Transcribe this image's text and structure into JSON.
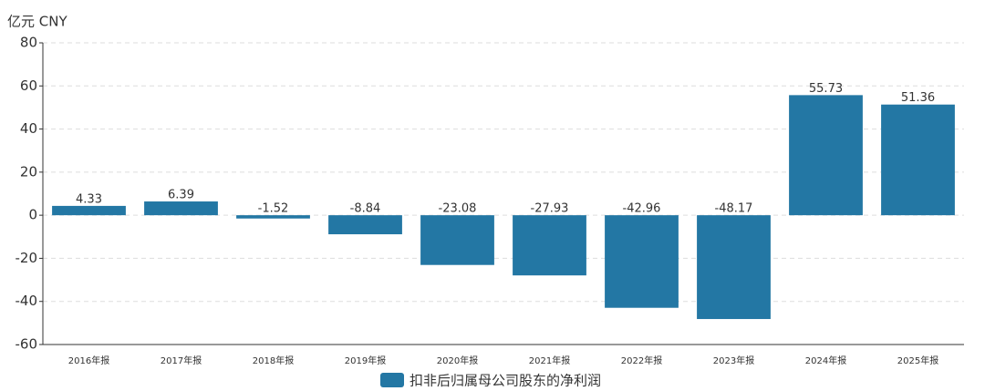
{
  "chart_data": {
    "type": "bar",
    "ylabel": "亿元  CNY",
    "categories": [
      "2016年报",
      "2017年报",
      "2018年报",
      "2019年报",
      "2020年报",
      "2021年报",
      "2022年报",
      "2023年报",
      "2024年报",
      "2025年报"
    ],
    "series": [
      {
        "name": "扣非后归属母公司股东的净利润",
        "color": "#2377a4",
        "values": [
          4.33,
          6.39,
          -1.52,
          -8.84,
          -23.08,
          -27.93,
          -42.96,
          -48.17,
          55.73,
          51.36
        ]
      }
    ],
    "ylim": [
      -60,
      80
    ],
    "yticks": [
      -60,
      -40,
      -20,
      0,
      20,
      40,
      60,
      80
    ],
    "grid": true
  }
}
